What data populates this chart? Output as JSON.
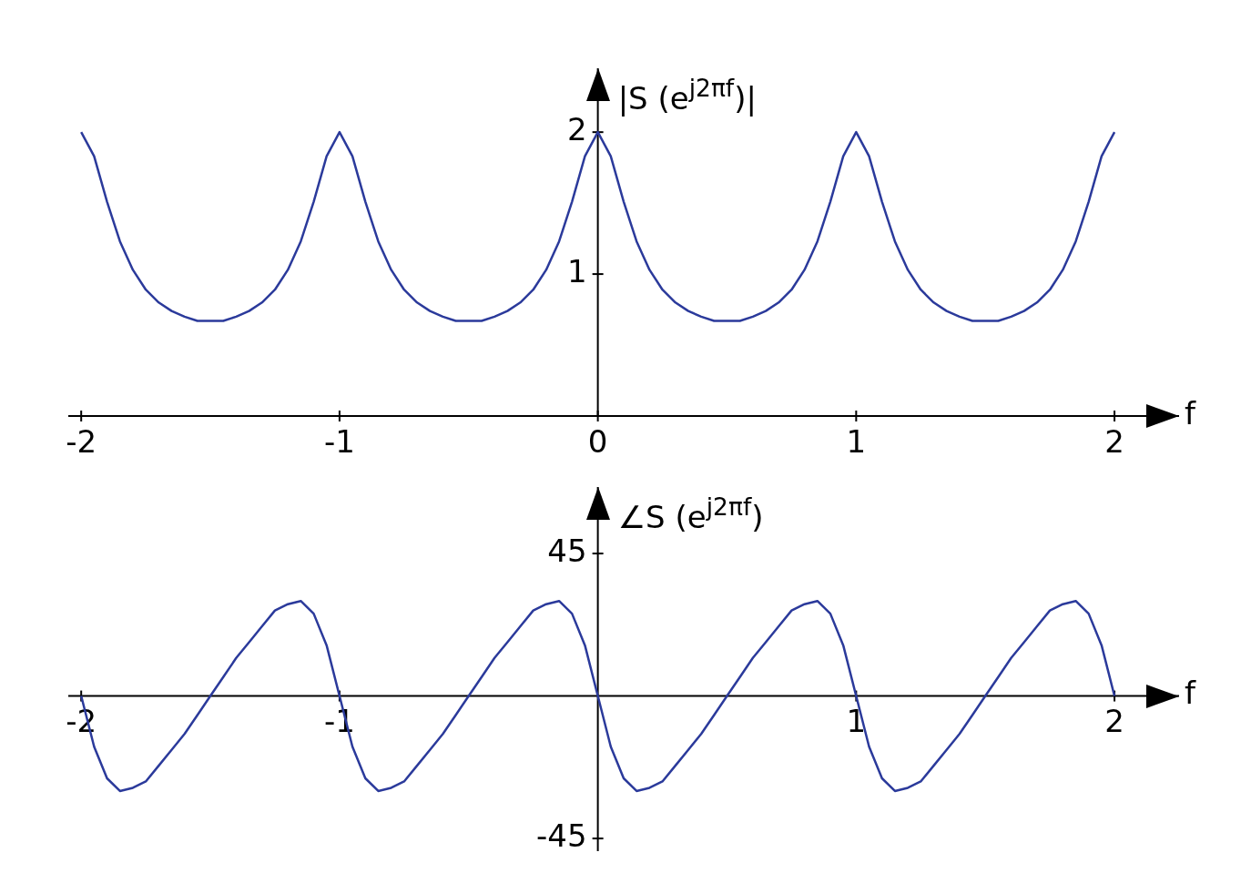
{
  "chart_data": [
    {
      "type": "line",
      "xlabel": "f",
      "ylabel": "|S (e$^{j2πf}$)|",
      "legend": false,
      "marker": "none",
      "xlim": [
        -2.05,
        2.25
      ],
      "ylim": [
        0,
        2.45
      ],
      "xticks": [
        -2,
        -1,
        0,
        1,
        2
      ],
      "yticks": [
        1,
        2
      ],
      "x": [
        -2,
        -1.95,
        -1.9,
        -1.85,
        -1.8,
        -1.75,
        -1.7,
        -1.65,
        -1.6,
        -1.55,
        -1.5,
        -1.45,
        -1.4,
        -1.35,
        -1.3,
        -1.25,
        -1.2,
        -1.15,
        -1.1,
        -1.05,
        -1,
        -0.95,
        -0.9,
        -0.85,
        -0.8,
        -0.75,
        -0.7,
        -0.65,
        -0.6,
        -0.55,
        -0.5,
        -0.45,
        -0.4,
        -0.35,
        -0.3,
        -0.25,
        -0.2,
        -0.15,
        -0.1,
        -0.05,
        0,
        0.05,
        0.1,
        0.15,
        0.2,
        0.25,
        0.3,
        0.35,
        0.4,
        0.45,
        0.5,
        0.55,
        0.6,
        0.65,
        0.7,
        0.75,
        0.8,
        0.85,
        0.9,
        0.95,
        1,
        1.05,
        1.1,
        1.15,
        1.2,
        1.25,
        1.3,
        1.35,
        1.4,
        1.45,
        1.5,
        1.55,
        1.6,
        1.65,
        1.7,
        1.75,
        1.8,
        1.85,
        1.9,
        1.95,
        2
      ],
      "series": [
        {
          "color": "#2b3a9b",
          "values": [
            2,
            1.83,
            1.51,
            1.23,
            1.03,
            0.89,
            0.8,
            0.74,
            0.7,
            0.67,
            0.67,
            0.67,
            0.7,
            0.74,
            0.8,
            0.89,
            1.03,
            1.23,
            1.51,
            1.83,
            2,
            1.83,
            1.51,
            1.23,
            1.03,
            0.89,
            0.8,
            0.74,
            0.7,
            0.67,
            0.67,
            0.67,
            0.7,
            0.74,
            0.8,
            0.89,
            1.03,
            1.23,
            1.51,
            1.83,
            2,
            1.83,
            1.51,
            1.23,
            1.03,
            0.89,
            0.8,
            0.74,
            0.7,
            0.67,
            0.67,
            0.67,
            0.7,
            0.74,
            0.8,
            0.89,
            1.03,
            1.23,
            1.51,
            1.83,
            2,
            1.83,
            1.51,
            1.23,
            1.03,
            0.89,
            0.8,
            0.74,
            0.7,
            0.67,
            0.67,
            0.67,
            0.7,
            0.74,
            0.8,
            0.89,
            1.03,
            1.23,
            1.51,
            1.83,
            2
          ]
        }
      ]
    },
    {
      "type": "line",
      "xlabel": "f",
      "ylabel": "∠S (e$^{j2πf}$)",
      "legend": false,
      "marker": "none",
      "xlim": [
        -2.05,
        2.25
      ],
      "ylim": [
        -49,
        66
      ],
      "xticks": [
        -2,
        -1,
        1,
        2
      ],
      "yticks": [
        -45,
        45
      ],
      "x": [
        -2,
        -1.95,
        -1.9,
        -1.85,
        -1.8,
        -1.75,
        -1.7,
        -1.65,
        -1.6,
        -1.55,
        -1.5,
        -1.45,
        -1.4,
        -1.35,
        -1.3,
        -1.25,
        -1.2,
        -1.15,
        -1.1,
        -1.05,
        -1,
        -0.95,
        -0.9,
        -0.85,
        -0.8,
        -0.75,
        -0.7,
        -0.65,
        -0.6,
        -0.55,
        -0.5,
        -0.45,
        -0.4,
        -0.35,
        -0.3,
        -0.25,
        -0.2,
        -0.15,
        -0.1,
        -0.05,
        0,
        0.05,
        0.1,
        0.15,
        0.2,
        0.25,
        0.3,
        0.35,
        0.4,
        0.45,
        0.5,
        0.55,
        0.6,
        0.65,
        0.7,
        0.75,
        0.8,
        0.85,
        0.9,
        0.95,
        1,
        1.05,
        1.1,
        1.15,
        1.2,
        1.25,
        1.3,
        1.35,
        1.4,
        1.45,
        1.5,
        1.55,
        1.6,
        1.65,
        1.7,
        1.75,
        1.8,
        1.85,
        1.9,
        1.95,
        2
      ],
      "series": [
        {
          "color": "#2b3a9b",
          "values": [
            0,
            -16,
            -26,
            -30,
            -29,
            -27,
            -22,
            -17,
            -12,
            -6,
            0,
            6,
            12,
            17,
            22,
            27,
            29,
            30,
            26,
            16,
            0,
            -16,
            -26,
            -30,
            -29,
            -27,
            -22,
            -17,
            -12,
            -6,
            0,
            6,
            12,
            17,
            22,
            27,
            29,
            30,
            26,
            16,
            0,
            -16,
            -26,
            -30,
            -29,
            -27,
            -22,
            -17,
            -12,
            -6,
            0,
            6,
            12,
            17,
            22,
            27,
            29,
            30,
            26,
            16,
            0,
            -16,
            -26,
            -30,
            -29,
            -27,
            -22,
            -17,
            -12,
            -6,
            0,
            6,
            12,
            17,
            22,
            27,
            29,
            30,
            26,
            16,
            0
          ]
        }
      ]
    }
  ]
}
